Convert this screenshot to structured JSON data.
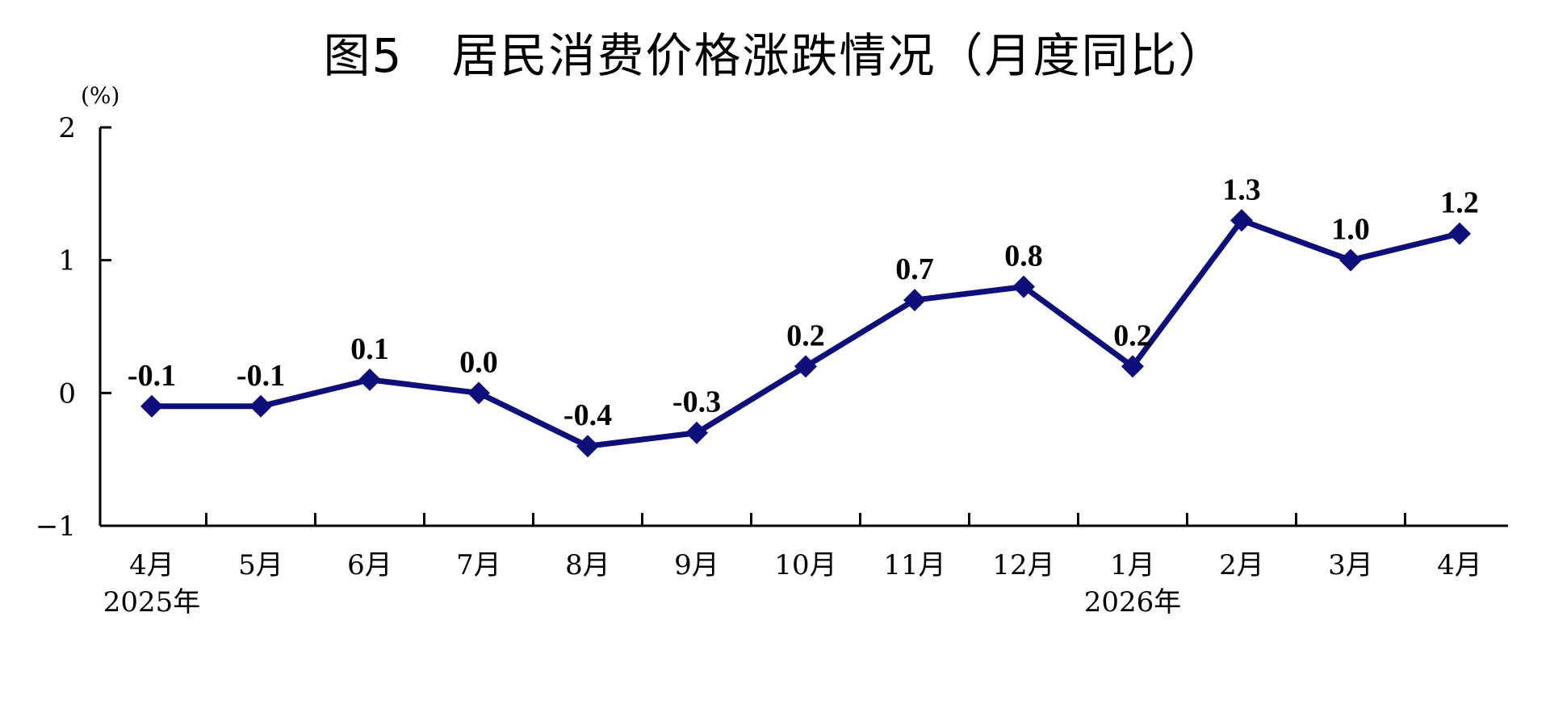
{
  "chart_data": {
    "type": "line",
    "title": "图5　居民消费价格涨跌情况（月度同比）",
    "unit_label": "(%)",
    "categories": [
      "4月",
      "5月",
      "6月",
      "7月",
      "8月",
      "9月",
      "10月",
      "11月",
      "12月",
      "1月",
      "2月",
      "3月",
      "4月"
    ],
    "year_labels": [
      {
        "index": 0,
        "label": "2025年"
      },
      {
        "index": 9,
        "label": "2026年"
      }
    ],
    "series": [
      {
        "values": [
          -0.1,
          -0.1,
          0.1,
          0.0,
          -0.4,
          -0.3,
          0.2,
          0.7,
          0.8,
          0.2,
          1.3,
          1.0,
          1.2
        ],
        "data_labels": [
          "-0.1",
          "-0.1",
          "0.1",
          "0.0",
          "-0.4",
          "-0.3",
          "0.2",
          "0.7",
          "0.8",
          "0.2",
          "1.3",
          "1.0",
          "1.2"
        ]
      }
    ],
    "yticks": [
      "2",
      "1",
      "0",
      "−1"
    ],
    "ytick_values": [
      2,
      1,
      0,
      -1
    ],
    "ylim": [
      -1,
      2
    ],
    "grid": false,
    "legend": "none",
    "colors": {
      "line": "#0f0f7a",
      "marker": "#0f0f7a",
      "axis": "#000000"
    }
  }
}
